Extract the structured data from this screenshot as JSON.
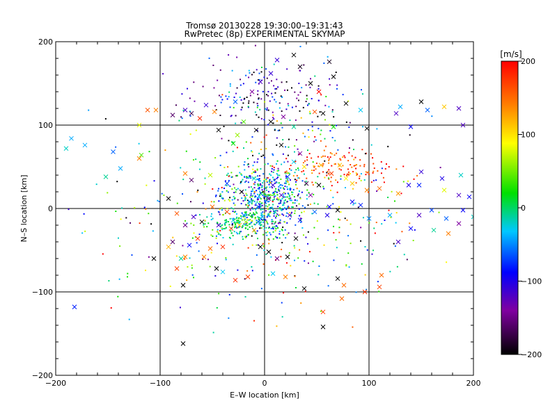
{
  "chart_data": {
    "type": "scatter",
    "title": "Tromsø 20130228 19:30:00–19:31:43",
    "subtitle": "RwPretec (8p) EXPERIMENTAL SKYMAP",
    "xlabel": "E–W location [km]",
    "ylabel": "N–S location [km]",
    "xlim": [
      -200,
      200
    ],
    "ylim": [
      -200,
      200
    ],
    "xticks": [
      -200,
      -100,
      0,
      100,
      200
    ],
    "yticks": [
      -200,
      -100,
      0,
      100,
      200
    ],
    "grid": "lines at -100, 0 and 100 on both axes",
    "colorbar": {
      "label": "[m/s]",
      "min": -200,
      "max": 200,
      "ticks": [
        200,
        100,
        0,
        -100,
        -200
      ],
      "colormap": "black-purple-blue-cyan-green-yellow-red"
    },
    "point_legend": "dots = meteor echoes, x = selected echoes (no printed legend)",
    "series": [
      {
        "marker": "x",
        "points": [
          [
            -182,
            -118,
            -80
          ],
          [
            -78,
            -162,
            -200
          ],
          [
            -106,
            -60,
            -200
          ],
          [
            -78,
            -92,
            -200
          ],
          [
            -120,
            100,
            80
          ],
          [
            -120,
            60,
            140
          ],
          [
            -185,
            84,
            -40
          ],
          [
            -172,
            76,
            -40
          ],
          [
            -145,
            68,
            -60
          ],
          [
            -138,
            48,
            -40
          ],
          [
            -152,
            38,
            -10
          ],
          [
            -190,
            72,
            -20
          ],
          [
            -112,
            118,
            160
          ],
          [
            -88,
            112,
            -160
          ],
          [
            -76,
            118,
            -120
          ],
          [
            -62,
            108,
            180
          ],
          [
            -56,
            124,
            -110
          ],
          [
            -48,
            116,
            140
          ],
          [
            -28,
            128,
            -60
          ],
          [
            -12,
            140,
            -140
          ],
          [
            -4,
            152,
            -120
          ],
          [
            6,
            162,
            -110
          ],
          [
            12,
            178,
            -110
          ],
          [
            28,
            184,
            -200
          ],
          [
            34,
            170,
            -190
          ],
          [
            44,
            150,
            -200
          ],
          [
            52,
            140,
            200
          ],
          [
            62,
            176,
            -190
          ],
          [
            66,
            158,
            -200
          ],
          [
            48,
            116,
            160
          ],
          [
            56,
            114,
            -200
          ],
          [
            78,
            126,
            -200
          ],
          [
            92,
            118,
            -30
          ],
          [
            98,
            96,
            -200
          ],
          [
            130,
            122,
            -40
          ],
          [
            150,
            128,
            -200
          ],
          [
            156,
            118,
            -60
          ],
          [
            172,
            122,
            110
          ],
          [
            186,
            120,
            -120
          ],
          [
            190,
            100,
            -120
          ],
          [
            140,
            98,
            -90
          ],
          [
            126,
            114,
            -120
          ],
          [
            150,
            44,
            -110
          ],
          [
            170,
            36,
            -100
          ],
          [
            188,
            40,
            -20
          ],
          [
            186,
            16,
            -120
          ],
          [
            172,
            22,
            80
          ],
          [
            196,
            14,
            -90
          ],
          [
            160,
            -2,
            -70
          ],
          [
            174,
            -12,
            -60
          ],
          [
            186,
            -18,
            -140
          ],
          [
            148,
            -8,
            -120
          ],
          [
            120,
            -8,
            -40
          ],
          [
            100,
            -12,
            -50
          ],
          [
            162,
            -26,
            -10
          ],
          [
            176,
            -30,
            140
          ],
          [
            190,
            -2,
            -90
          ],
          [
            200,
            -10,
            -20
          ],
          [
            140,
            -24,
            -90
          ],
          [
            128,
            -40,
            -120
          ],
          [
            112,
            -80,
            150
          ],
          [
            110,
            -94,
            170
          ],
          [
            96,
            -100,
            180
          ],
          [
            76,
            -92,
            150
          ],
          [
            70,
            -84,
            -200
          ],
          [
            74,
            -108,
            150
          ],
          [
            56,
            -124,
            170
          ],
          [
            56,
            -142,
            -200
          ],
          [
            38,
            -96,
            -200
          ],
          [
            20,
            -82,
            140
          ],
          [
            8,
            -78,
            -30
          ],
          [
            -16,
            -82,
            170
          ],
          [
            -28,
            -86,
            180
          ],
          [
            -40,
            -76,
            -30
          ],
          [
            -46,
            -72,
            -200
          ],
          [
            -58,
            -58,
            140
          ],
          [
            -72,
            -44,
            -90
          ],
          [
            -88,
            -40,
            -160
          ],
          [
            -76,
            -58,
            140
          ],
          [
            -84,
            -72,
            170
          ],
          [
            -40,
            -46,
            180
          ],
          [
            -32,
            -24,
            170
          ],
          [
            -24,
            -20,
            110
          ],
          [
            -18,
            -16,
            60
          ],
          [
            -10,
            -26,
            130
          ],
          [
            -4,
            -46,
            -200
          ],
          [
            4,
            -52,
            -200
          ],
          [
            12,
            -60,
            -150
          ],
          [
            22,
            -58,
            -200
          ],
          [
            30,
            -36,
            -200
          ],
          [
            -36,
            -4,
            170
          ],
          [
            -50,
            2,
            150
          ],
          [
            -68,
            -10,
            -120
          ],
          [
            -76,
            -20,
            -150
          ],
          [
            -84,
            -6,
            160
          ],
          [
            -92,
            12,
            -200
          ],
          [
            -70,
            34,
            -160
          ],
          [
            -76,
            42,
            140
          ],
          [
            -52,
            40,
            70
          ],
          [
            -36,
            30,
            -70
          ],
          [
            -22,
            20,
            -200
          ],
          [
            -10,
            36,
            -20
          ],
          [
            4,
            12,
            -140
          ],
          [
            8,
            28,
            -110
          ],
          [
            16,
            16,
            -120
          ],
          [
            22,
            38,
            -70
          ],
          [
            28,
            56,
            -30
          ],
          [
            34,
            66,
            -140
          ],
          [
            16,
            76,
            -200
          ],
          [
            38,
            50,
            100
          ],
          [
            54,
            52,
            120
          ],
          [
            64,
            42,
            170
          ],
          [
            72,
            52,
            110
          ],
          [
            78,
            36,
            90
          ],
          [
            84,
            30,
            110
          ],
          [
            98,
            22,
            140
          ],
          [
            110,
            24,
            150
          ],
          [
            128,
            18,
            130
          ],
          [
            138,
            28,
            -100
          ],
          [
            148,
            28,
            -80
          ],
          [
            92,
            4,
            -80
          ],
          [
            84,
            8,
            -90
          ],
          [
            70,
            -2,
            -200
          ],
          [
            62,
            2,
            -90
          ],
          [
            60,
            -8,
            -100
          ],
          [
            48,
            -4,
            -60
          ],
          [
            34,
            -14,
            -90
          ],
          [
            24,
            -8,
            -120
          ],
          [
            44,
            16,
            -140
          ],
          [
            52,
            28,
            -200
          ],
          [
            40,
            30,
            -170
          ],
          [
            -6,
            2,
            -70
          ],
          [
            -2,
            -10,
            -40
          ],
          [
            -6,
            -16,
            -60
          ],
          [
            -20,
            -8,
            -50
          ],
          [
            -30,
            -14,
            -30
          ],
          [
            10,
            -4,
            -10
          ],
          [
            -14,
            8,
            -40
          ],
          [
            -60,
            -16,
            -200
          ],
          [
            -44,
            -20,
            -120
          ],
          [
            -52,
            -48,
            150
          ],
          [
            -64,
            -36,
            180
          ],
          [
            -80,
            -60,
            -10
          ],
          [
            -92,
            -46,
            120
          ],
          [
            -44,
            94,
            -200
          ],
          [
            -30,
            78,
            20
          ],
          [
            -26,
            88,
            60
          ],
          [
            6,
            104,
            -200
          ],
          [
            18,
            110,
            -140
          ],
          [
            28,
            98,
            -10
          ],
          [
            -8,
            94,
            -200
          ],
          [
            -20,
            104,
            40
          ],
          [
            66,
            98,
            20
          ],
          [
            -70,
            114,
            -170
          ],
          [
            -104,
            118,
            140
          ],
          [
            -118,
            64,
            40
          ]
        ]
      },
      {
        "marker": "dot",
        "clusters": [
          {
            "cx": 0,
            "cy": 14,
            "sx": 20,
            "sy": 22,
            "n": 520,
            "vmean": -40,
            "vsd": 60
          },
          {
            "cx": -22,
            "cy": -18,
            "sx": 18,
            "sy": 8,
            "n": 160,
            "vmean": 0,
            "vsd": 25
          },
          {
            "cx": 70,
            "cy": 48,
            "sx": 28,
            "sy": 12,
            "n": 140,
            "vmean": 170,
            "vsd": 30
          },
          {
            "cx": 5,
            "cy": 136,
            "sx": 34,
            "sy": 20,
            "n": 170,
            "vmean": -120,
            "vsd": 70
          },
          {
            "cx": 0,
            "cy": 0,
            "sx": 80,
            "sy": 55,
            "n": 280,
            "vmean": -20,
            "vsd": 110
          },
          {
            "cx": 30,
            "cy": 90,
            "sx": 40,
            "sy": 25,
            "n": 80,
            "vmean": -60,
            "vsd": 120
          },
          {
            "cx": 0,
            "cy": -40,
            "sx": 70,
            "sy": 40,
            "n": 100,
            "vmean": 40,
            "vsd": 120
          }
        ]
      }
    ]
  }
}
